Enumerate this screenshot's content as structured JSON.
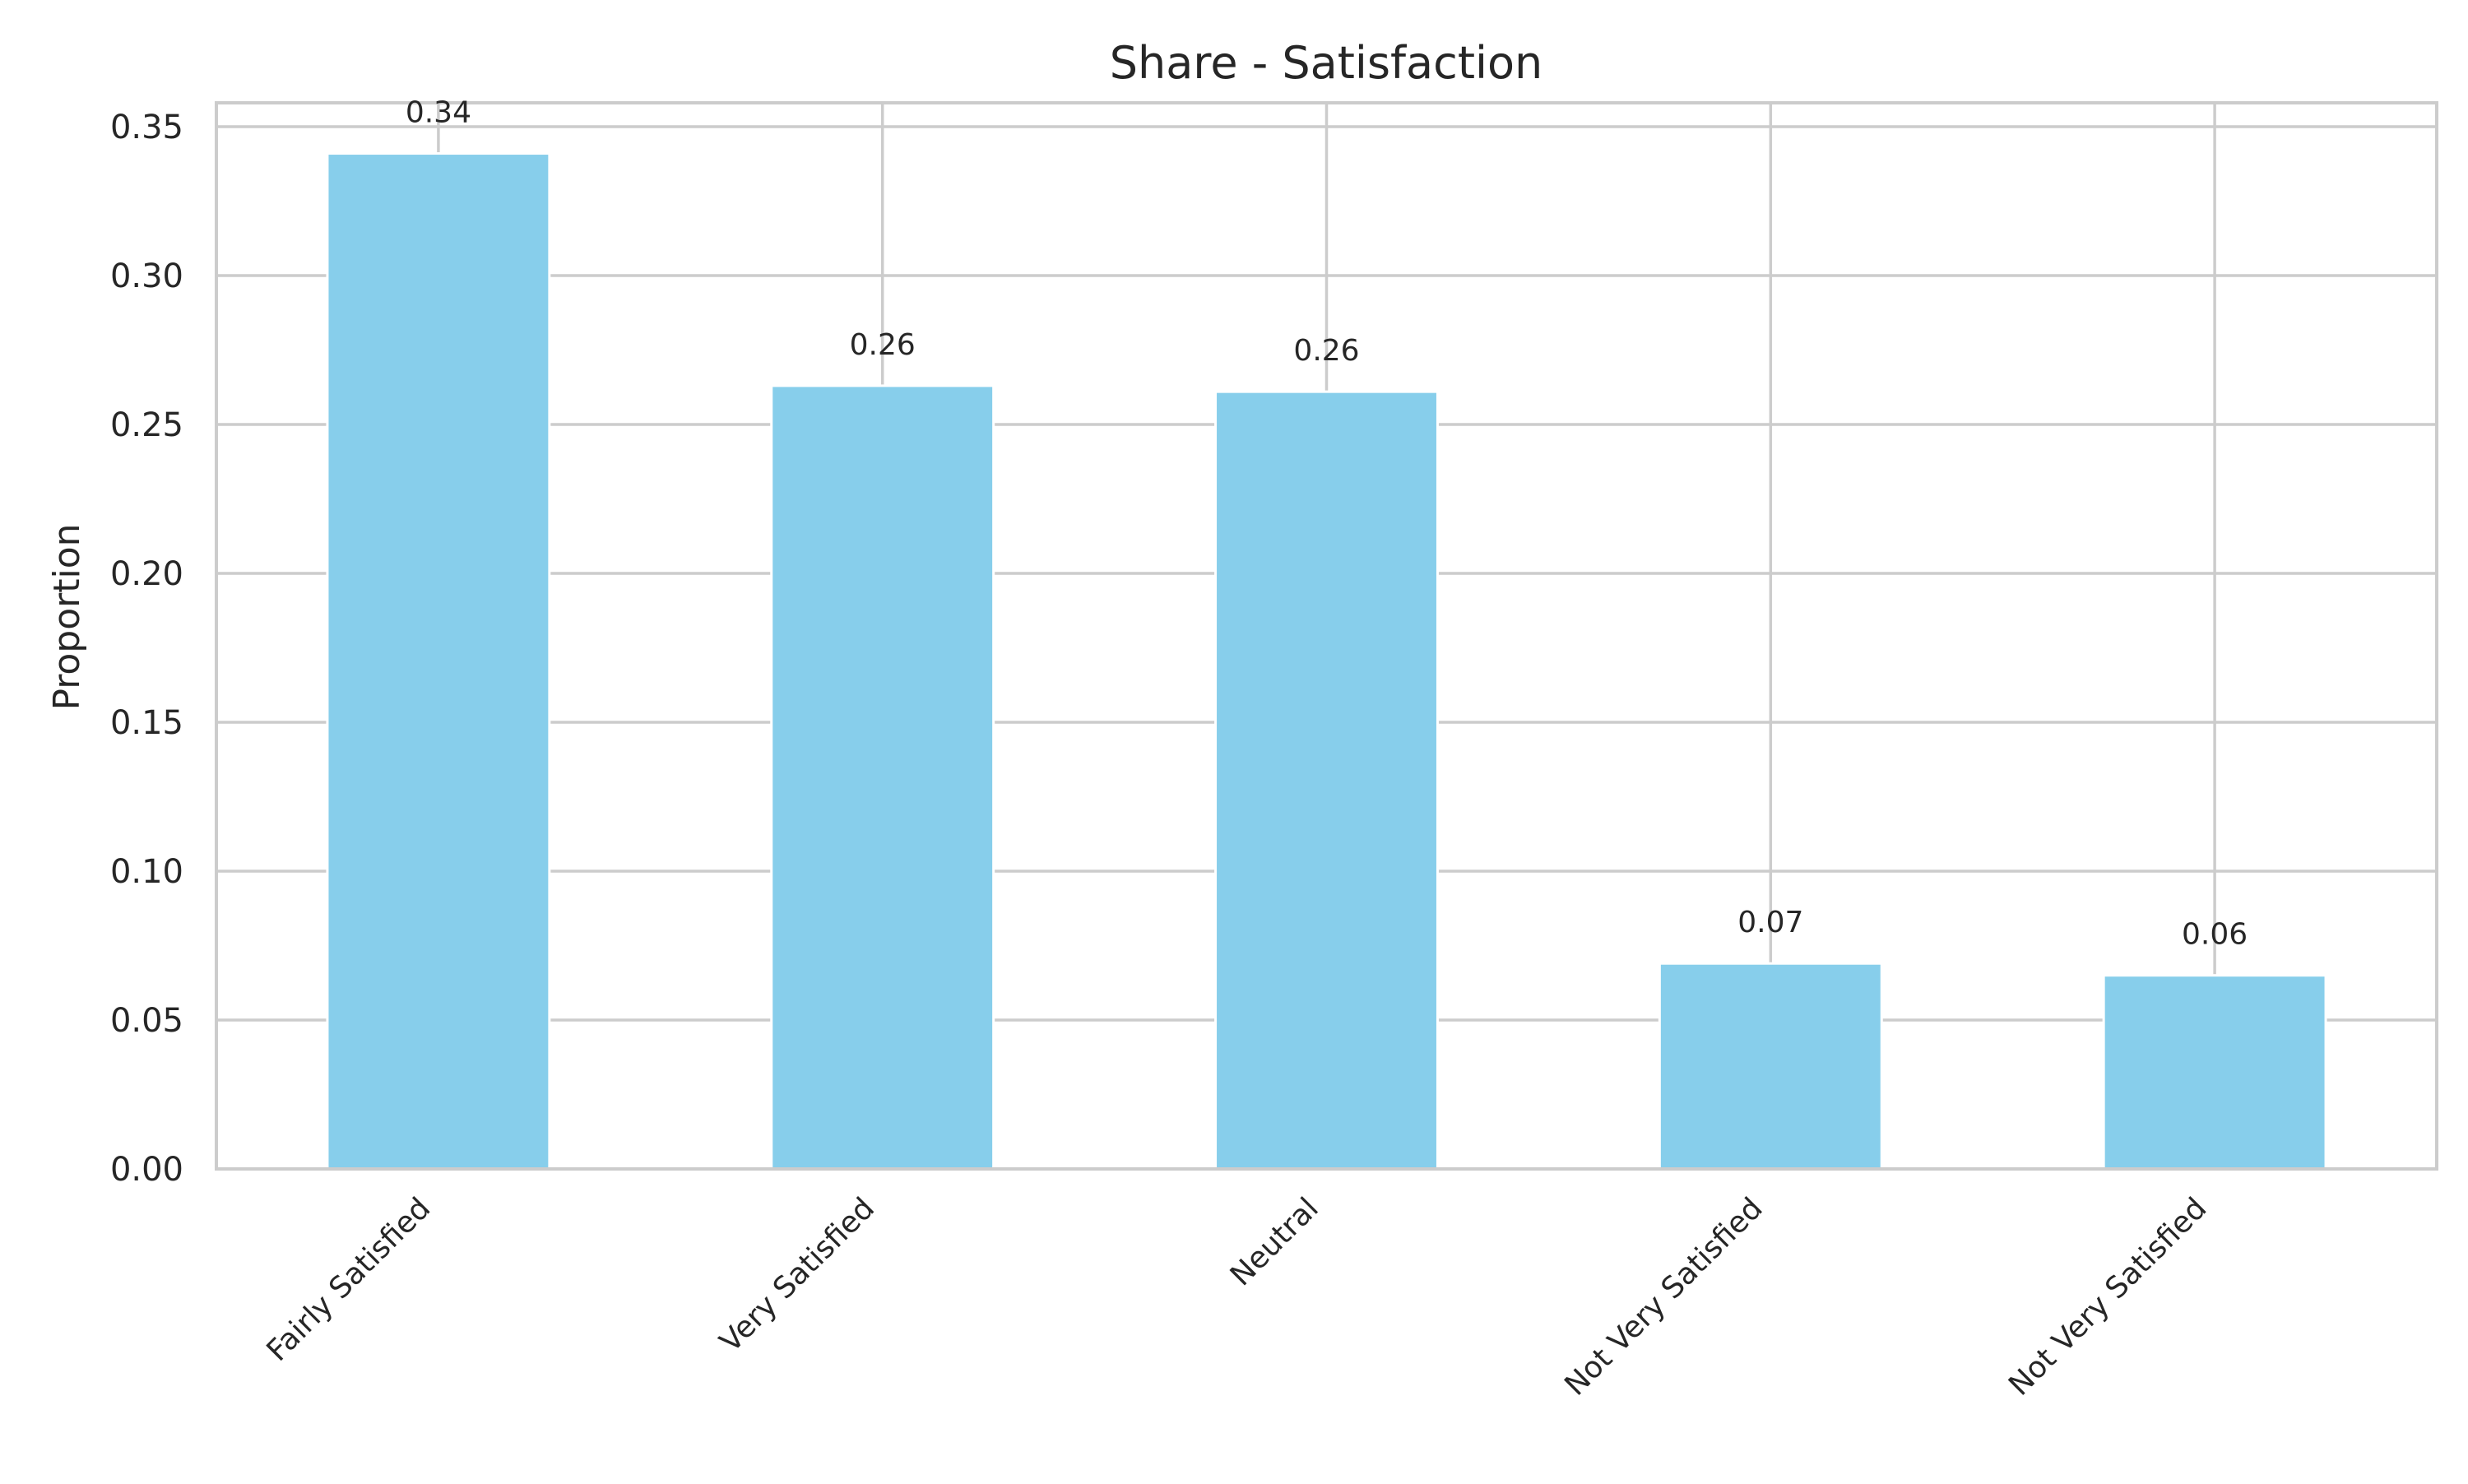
{
  "chart_data": {
    "type": "bar",
    "title": "Share - Satisfaction",
    "xlabel": "",
    "ylabel": "Proportion",
    "categories": [
      "Fairly Satisfied",
      "Very Satisfied",
      "Neutral",
      "Not Very Satisfied",
      "Not Very Satisfied"
    ],
    "values": [
      0.341,
      0.263,
      0.261,
      0.069,
      0.065
    ],
    "data_labels": [
      "0.34",
      "0.26",
      "0.26",
      "0.07",
      "0.06"
    ],
    "ylim": [
      0,
      0.358
    ],
    "yticks": [
      0.0,
      0.05,
      0.1,
      0.15,
      0.2,
      0.25,
      0.3,
      0.35
    ],
    "ytick_labels": [
      "0.00",
      "0.05",
      "0.10",
      "0.15",
      "0.20",
      "0.25",
      "0.30",
      "0.35"
    ],
    "grid": true,
    "legend": "none",
    "colors": {
      "bar": "#87CEEB",
      "grid": "#cccccc",
      "axes": "#cccccc",
      "text": "#262626"
    }
  }
}
